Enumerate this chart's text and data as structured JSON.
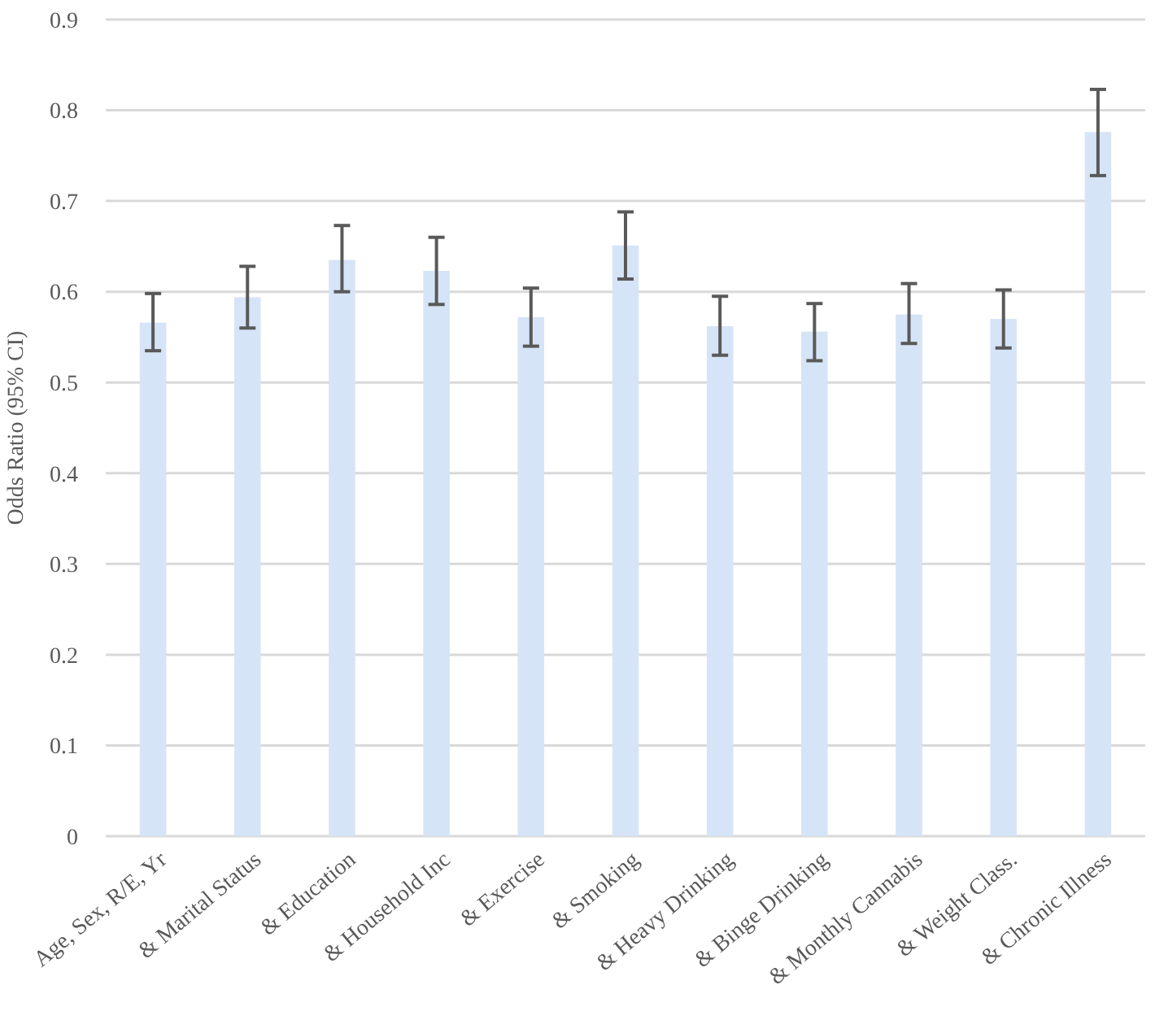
{
  "chart_data": {
    "type": "bar",
    "ylabel": "Odds Ratio (95% CI)",
    "categories": [
      "Age, Sex, R/E, Yr",
      "& Marital Status",
      "& Education",
      "& Household Inc",
      "& Exercise",
      "& Smoking",
      "& Heavy Drinking",
      "& Binge Drinking",
      "& Monthly Cannabis",
      "& Weight Class.",
      "& Chronic Illness"
    ],
    "values": [
      0.566,
      0.594,
      0.635,
      0.623,
      0.572,
      0.651,
      0.562,
      0.556,
      0.575,
      0.57,
      0.776
    ],
    "errors": [
      [
        0.535,
        0.598
      ],
      [
        0.56,
        0.628
      ],
      [
        0.6,
        0.673
      ],
      [
        0.586,
        0.66
      ],
      [
        0.54,
        0.604
      ],
      [
        0.614,
        0.688
      ],
      [
        0.53,
        0.595
      ],
      [
        0.524,
        0.587
      ],
      [
        0.543,
        0.609
      ],
      [
        0.538,
        0.602
      ],
      [
        0.728,
        0.823
      ]
    ],
    "color": "#d6e4f7",
    "ylim": [
      0,
      0.9
    ],
    "yticks": [
      0,
      0.1,
      0.2,
      0.3,
      0.4,
      0.5,
      0.6,
      0.7,
      0.8,
      0.9
    ],
    "grid": "y"
  }
}
